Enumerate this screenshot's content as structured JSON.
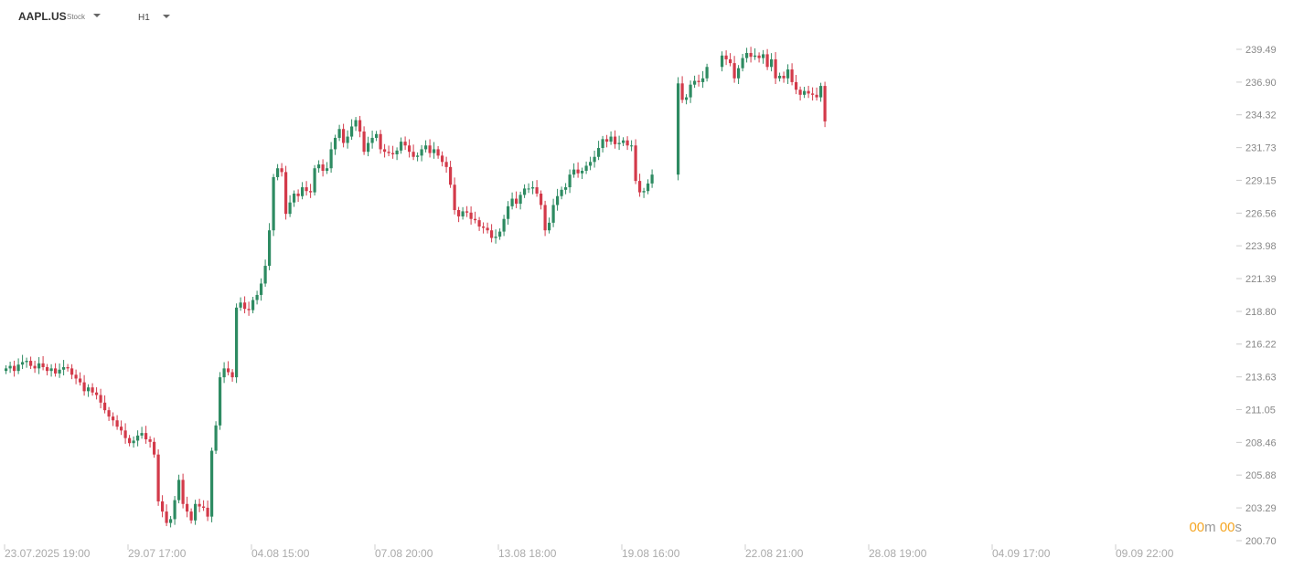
{
  "header": {
    "symbol": "AAPL.US",
    "symbol_type": "Stock",
    "timeframe": "H1"
  },
  "countdown": {
    "minutes": "00",
    "minutes_unit": "m",
    "seconds": "00",
    "seconds_unit": "s"
  },
  "colors": {
    "up": "#2e8b62",
    "down": "#d33a4a",
    "axis_text": "#888888",
    "countdown": "#f5a623"
  },
  "chart_data": {
    "type": "candlestick",
    "title": "",
    "y_ticks": [
      "239.49",
      "236.90",
      "234.32",
      "231.73",
      "229.15",
      "226.56",
      "223.98",
      "221.39",
      "218.80",
      "216.22",
      "213.63",
      "211.05",
      "208.46",
      "205.88",
      "203.29",
      "200.70"
    ],
    "ylim": [
      200.7,
      239.49
    ],
    "x_ticks": [
      "23.07.2025 19:00",
      "29.07 17:00",
      "04.08 15:00",
      "07.08 20:00",
      "13.08 18:00",
      "19.08 16:00",
      "22.08 21:00",
      "28.08 19:00",
      "04.09 17:00",
      "09.09 22:00"
    ],
    "grid": false,
    "series_close": [
      214.3,
      214.5,
      214.1,
      214.6,
      214.8,
      214.9,
      214.5,
      214.3,
      214.7,
      214.4,
      214.1,
      214.3,
      213.9,
      214.2,
      214.4,
      214.3,
      213.8,
      213.5,
      213.2,
      212.5,
      212.8,
      212.4,
      212.2,
      211.6,
      211.0,
      210.5,
      210.2,
      209.7,
      209.4,
      208.8,
      208.4,
      208.6,
      209.0,
      209.2,
      208.7,
      208.5,
      207.5,
      203.8,
      203.0,
      202.1,
      202.4,
      203.9,
      205.5,
      203.6,
      203.0,
      202.3,
      203.6,
      203.4,
      203.3,
      202.6,
      207.8,
      209.8,
      213.6,
      214.3,
      214.0,
      213.6,
      219.1,
      219.5,
      219.0,
      218.9,
      219.7,
      220.1,
      221.0,
      222.4,
      225.2,
      229.4,
      230.1,
      229.8,
      226.5,
      227.4,
      228.1,
      227.9,
      228.6,
      228.3,
      228.2,
      230.1,
      230.4,
      229.9,
      230.1,
      231.6,
      232.5,
      233.2,
      232.1,
      232.6,
      233.4,
      233.9,
      233.0,
      231.4,
      232.1,
      232.5,
      232.8,
      231.6,
      231.4,
      231.3,
      231.2,
      231.5,
      232.2,
      231.9,
      231.4,
      231.0,
      231.1,
      231.6,
      231.9,
      231.3,
      231.6,
      231.1,
      230.6,
      230.2,
      228.8,
      226.8,
      226.3,
      226.7,
      226.6,
      226.1,
      226.0,
      225.5,
      225.4,
      225.2,
      224.6,
      224.7,
      225.1,
      226.1,
      227.1,
      227.7,
      227.3,
      228.0,
      228.5,
      228.5,
      228.6,
      228.1,
      227.2,
      225.2,
      225.8,
      227.2,
      227.9,
      228.4,
      228.6,
      229.6,
      230.0,
      229.7,
      229.9,
      230.3,
      230.6,
      231.0,
      231.7,
      232.4,
      232.2,
      232.6,
      232.0,
      232.1,
      232.3,
      231.9,
      231.9,
      229.1,
      228.2,
      228.3,
      228.9,
      229.6,
      236.8,
      235.5,
      235.7,
      236.7,
      237.0,
      236.9,
      237.2,
      238.1,
      239.0,
      238.7,
      238.4,
      237.2,
      238.0,
      238.8,
      239.2,
      238.9,
      239.0,
      238.8,
      239.1,
      238.1,
      238.7,
      237.2,
      237.4,
      237.2,
      237.9,
      236.9,
      236.3,
      235.9,
      236.2,
      236.0,
      235.9,
      235.7,
      236.6,
      233.8
    ]
  }
}
